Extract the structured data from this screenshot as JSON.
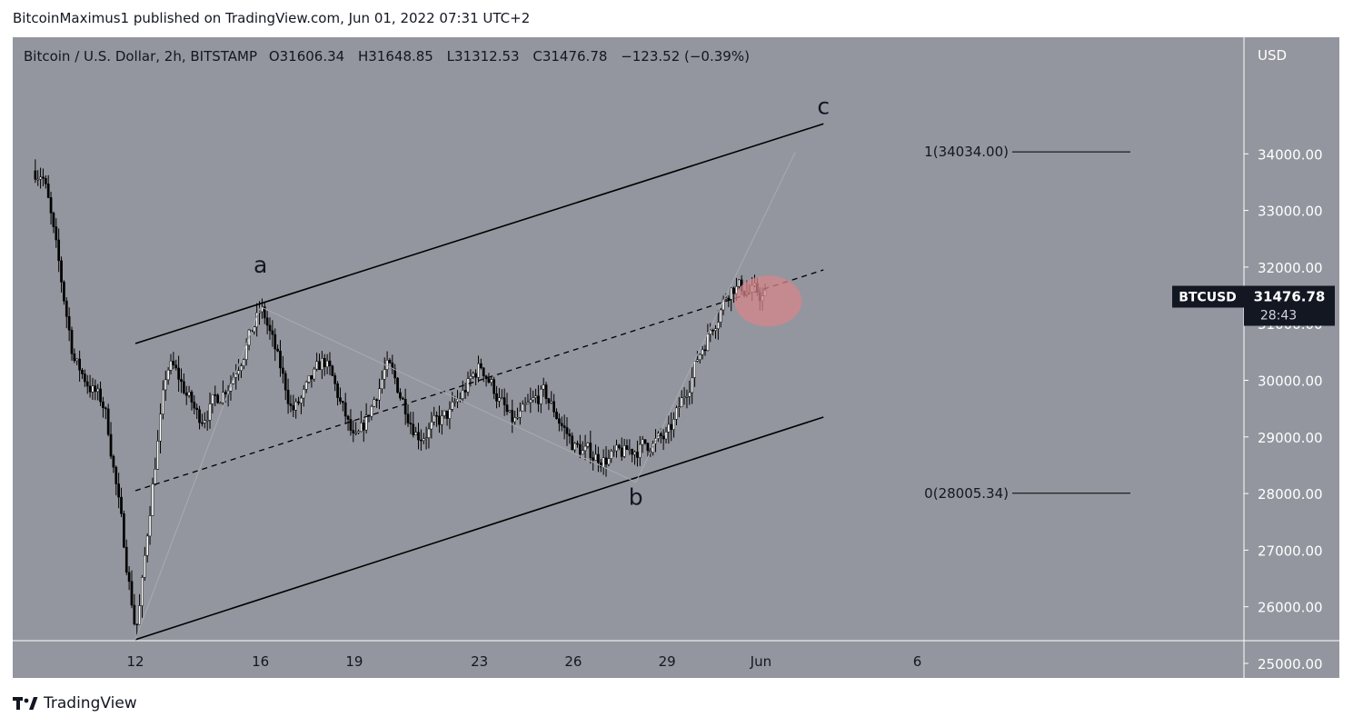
{
  "header": {
    "published_line": "BitcoinMaximus1 published on TradingView.com, Jun 01, 2022 07:31 UTC+2"
  },
  "legend": {
    "symbol": "Bitcoin / U.S. Dollar, 2h, BITSTAMP",
    "open_label": "O",
    "open": "31606.34",
    "high_label": "H",
    "high": "31648.85",
    "low_label": "L",
    "low": "31312.53",
    "close_label": "C",
    "close": "31476.78",
    "change": "−123.52 (−0.39%)"
  },
  "axis": {
    "currency": "USD"
  },
  "price_tag": {
    "symbol": "BTCUSD",
    "price": "31476.78",
    "countdown": "28:43"
  },
  "footer": {
    "logo_text": "TradingView"
  },
  "colors": {
    "background": "#93969e",
    "candle_up": "#ffffff",
    "candle_down": "#000000",
    "highlight": "#d6868a"
  },
  "chart_data": {
    "type": "candlestick",
    "title": "",
    "x_ticks": [
      "12",
      "16",
      "19",
      "23",
      "26",
      "29",
      "Jun",
      "6"
    ],
    "y_ticks": [
      "25000.00",
      "26000.00",
      "27000.00",
      "28000.00",
      "29000.00",
      "30000.00",
      "31000.00",
      "32000.00",
      "33000.00",
      "34000.00"
    ],
    "ylim": [
      24800,
      35000
    ],
    "price_anchors": [
      {
        "date": "May 09",
        "price": 33700
      },
      {
        "date": "May 10",
        "price": 30300
      },
      {
        "date": "May 11",
        "price": 29500
      },
      {
        "date": "May 12",
        "price": 25400
      },
      {
        "date": "May 12",
        "price": 28000
      },
      {
        "date": "May 13",
        "price": 30400
      },
      {
        "date": "May 14",
        "price": 29300
      },
      {
        "date": "May 15",
        "price": 30000
      },
      {
        "date": "May 16",
        "price": 31300
      },
      {
        "date": "May 17",
        "price": 29400
      },
      {
        "date": "May 18",
        "price": 30400
      },
      {
        "date": "May 19",
        "price": 28800
      },
      {
        "date": "May 20",
        "price": 30300
      },
      {
        "date": "May 21",
        "price": 29000
      },
      {
        "date": "May 22",
        "price": 29400
      },
      {
        "date": "May 23",
        "price": 30300
      },
      {
        "date": "May 24",
        "price": 29200
      },
      {
        "date": "May 25",
        "price": 29800
      },
      {
        "date": "May 26",
        "price": 28800
      },
      {
        "date": "May 27",
        "price": 28600
      },
      {
        "date": "May 28",
        "price": 28800
      },
      {
        "date": "May 29",
        "price": 29000
      },
      {
        "date": "May 30",
        "price": 30500
      },
      {
        "date": "May 31",
        "price": 31700
      },
      {
        "date": "Jun 01",
        "price": 31477
      }
    ],
    "channel": {
      "upper": [
        {
          "date": "May 12",
          "price": 30650
        },
        {
          "date": "Jun 03",
          "price": 34530
        }
      ],
      "lower": [
        {
          "date": "May 12",
          "price": 25420
        },
        {
          "date": "Jun 03",
          "price": 29350
        }
      ],
      "middle_dashed": [
        {
          "date": "May 12",
          "price": 28050
        },
        {
          "date": "Jun 03",
          "price": 31950
        }
      ]
    },
    "wave_labels": [
      {
        "text": "a",
        "date": "May 16",
        "price": 31900
      },
      {
        "text": "b",
        "date": "May 28",
        "price": 27800
      },
      {
        "text": "c",
        "date": "Jun 03",
        "price": 34700
      }
    ],
    "fib_levels": [
      {
        "label": "1(34034.00)",
        "price": 34034.0
      },
      {
        "label": "0(28005.34)",
        "price": 28005.34
      }
    ],
    "highlight_zone": {
      "date": "Jun 01",
      "price": 31400
    }
  }
}
